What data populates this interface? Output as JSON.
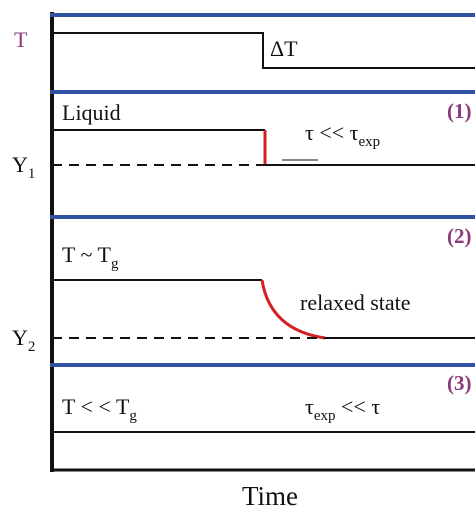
{
  "panels": {
    "t": {
      "label": "T",
      "step": "ΔT"
    },
    "p1": {
      "number": "(1)",
      "state": "Liquid",
      "y_label": {
        "main": "Y",
        "sub": "1"
      },
      "relation": {
        "a": "τ  <<  τ",
        "sub": "exp"
      }
    },
    "p2": {
      "number": "(2)",
      "state": {
        "main": "T ~ T",
        "sub": "g"
      },
      "y_label": {
        "main": "Y",
        "sub": "2"
      },
      "note": "relaxed state"
    },
    "p3": {
      "number": "(3)",
      "state": {
        "main": "T < < T",
        "sub": "g"
      },
      "relation": {
        "a": "τ",
        "sub": "exp",
        "b": " << τ"
      }
    }
  },
  "x_axis_label": "Time"
}
